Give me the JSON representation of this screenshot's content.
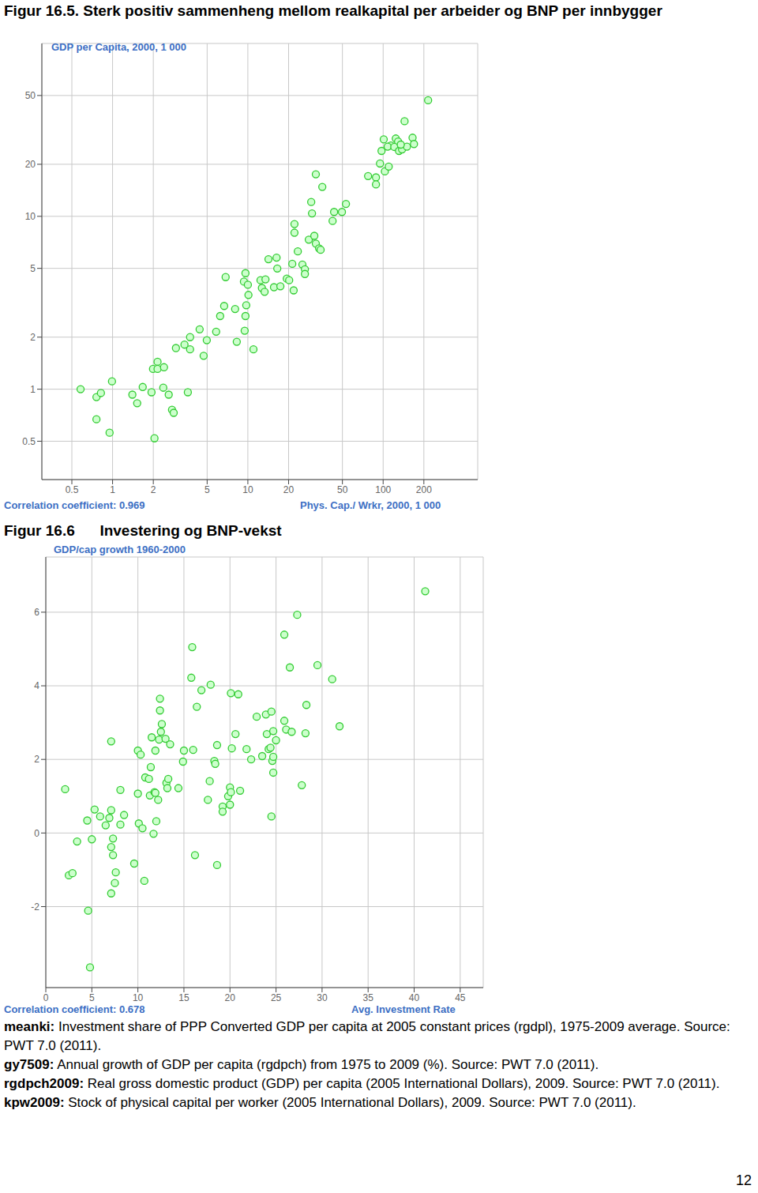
{
  "chart_data": [
    {
      "type": "scatter",
      "title": "Figur 16.5. Sterk positiv sammenheng mellom realkapital per arbeider og BNP per innbygger",
      "x_label": "Phys. Cap./ Wrkr, 2000, 1 000",
      "y_label": "GDP per Capita, 2000, 1 000",
      "annotations": [
        "Correlation coefficient: 0.969"
      ],
      "log": true,
      "grid": true,
      "marker": "circle",
      "color": "#33cc33",
      "xlim": [
        0.3,
        500
      ],
      "xticks": [
        0.5,
        1,
        2,
        5,
        10,
        20,
        50,
        100,
        200
      ],
      "ylim": [
        0.3,
        100
      ],
      "yticks": [
        0.5,
        1,
        2,
        5,
        10,
        20,
        50
      ],
      "x": [
        0.58,
        0.76,
        0.82,
        0.76,
        0.95,
        0.99,
        1.4,
        1.52,
        1.67,
        1.99,
        2.15,
        2.15,
        2.4,
        2.37,
        1.94,
        2.6,
        2.75,
        2.83,
        2.04,
        3.6,
        2.94,
        3.4,
        3.74,
        3.74,
        4.71,
        4.97,
        4.4,
        5.83,
        6.24,
        6.68,
        6.85,
        8.05,
        8.28,
        9.6,
        9.73,
        9.6,
        9.35,
        10,
        10.1,
        9.47,
        11,
        12.4,
        12.7,
        13.3,
        13.5,
        14.2,
        16.3,
        16.5,
        15.6,
        17.4,
        19.4,
        20.2,
        21.8,
        21.3,
        23.4,
        22.1,
        22.1,
        25.3,
        26.4,
        26.4,
        28.2,
        31,
        31.8,
        33.6,
        34.5,
        29.8,
        29.4,
        31.8,
        35.5,
        42.3,
        43.4,
        49.6,
        53.1,
        77.4,
        88.5,
        88.5,
        94.8,
        103,
        110,
        97.3,
        101,
        114,
        108,
        124,
        129,
        121,
        131,
        138,
        150,
        135,
        144,
        165,
        169,
        215
      ],
      "values": [
        1.0,
        0.9,
        0.95,
        0.67,
        0.56,
        1.11,
        0.93,
        0.83,
        1.03,
        1.31,
        1.44,
        1.31,
        1.34,
        1.02,
        0.96,
        0.93,
        0.76,
        0.73,
        0.52,
        0.96,
        1.73,
        1.81,
        2.0,
        1.7,
        1.56,
        1.92,
        2.22,
        2.15,
        2.65,
        3.03,
        4.45,
        2.91,
        1.88,
        2.65,
        3.06,
        4.69,
        4.19,
        4.02,
        3.51,
        2.18,
        1.7,
        4.27,
        3.85,
        3.66,
        4.32,
        5.65,
        5.77,
        4.99,
        3.89,
        3.94,
        4.36,
        4.27,
        3.73,
        5.31,
        6.27,
        8.04,
        9.02,
        5.26,
        4.94,
        4.64,
        7.33,
        7.71,
        6.95,
        6.53,
        6.4,
        10.4,
        12.1,
        17.5,
        14.8,
        9.4,
        10.6,
        10.6,
        11.8,
        17.1,
        16.8,
        15.3,
        20.2,
        18.2,
        19.4,
        23.9,
        27.9,
        25.7,
        25.3,
        28.2,
        27.1,
        25.2,
        23.9,
        24.4,
        25.3,
        26.0,
        35.5,
        28.5,
        26.2,
        46.9
      ]
    },
    {
      "type": "scatter",
      "title": "Figur 16.6      Investering og BNP-vekst",
      "x_label": "Avg. Investment Rate",
      "y_label": "GDP/cap growth 1960-2000",
      "annotations": [
        "Correlation coefficient: 0.678"
      ],
      "grid": true,
      "marker": "circle",
      "color": "#33cc33",
      "xlim": [
        0,
        47.5
      ],
      "xticks": [
        0,
        5,
        10,
        15,
        20,
        25,
        30,
        35,
        40,
        45
      ],
      "ylim": [
        -4.2,
        7.5
      ],
      "yticks": [
        -2,
        0,
        2,
        4,
        6
      ],
      "x": [
        2.1,
        2.5,
        2.9,
        3.4,
        4.5,
        4.6,
        4.8,
        5.0,
        5.3,
        5.9,
        6.5,
        6.9,
        7.1,
        7.1,
        7.1,
        7.3,
        7.3,
        7.6,
        7.5,
        7.1,
        8.1,
        8.1,
        8.5,
        9.6,
        10.0,
        10.0,
        10.3,
        10.1,
        10.5,
        10.7,
        10.8,
        11.2,
        11.4,
        11.3,
        11.7,
        11.8,
        12.0,
        11.9,
        12.2,
        11.5,
        11.9,
        12.3,
        12.4,
        12.4,
        12.6,
        12.5,
        13.0,
        13.1,
        13.3,
        13.5,
        13.2,
        14.4,
        14.9,
        15.0,
        16.0,
        15.9,
        15.8,
        16.4,
        16.9,
        16.2,
        17.9,
        17.8,
        17.6,
        18.3,
        18.4,
        18.6,
        18.6,
        19.2,
        19.2,
        19.8,
        20.0,
        20.1,
        20.9,
        20.2,
        20.6,
        20.0,
        20.1,
        21.1,
        21.8,
        22.3,
        22.9,
        23.9,
        24.0,
        24.2,
        24.5,
        24.4,
        24.6,
        24.7,
        24.7,
        24.7,
        24.5,
        25.0,
        23.5,
        25.9,
        26.5,
        25.9,
        26.1,
        26.7,
        27.3,
        28.3,
        28.2,
        27.8,
        29.5,
        31.1,
        31.9,
        41.2
      ],
      "values": [
        1.19,
        -1.15,
        -1.09,
        -0.23,
        0.34,
        -2.11,
        -3.65,
        -0.17,
        0.64,
        0.45,
        0.21,
        0.41,
        0.62,
        2.49,
        -0.38,
        -0.6,
        -0.15,
        -1.07,
        -1.36,
        -1.64,
        0.23,
        1.17,
        0.49,
        -0.83,
        1.07,
        2.24,
        2.13,
        0.26,
        0.13,
        -1.3,
        1.51,
        1.47,
        1.79,
        1.02,
        -0.02,
        1.11,
        0.32,
        1.09,
        0.9,
        2.6,
        2.24,
        2.54,
        3.33,
        3.65,
        2.96,
        2.75,
        2.56,
        1.36,
        1.47,
        2.41,
        1.22,
        1.22,
        1.94,
        2.24,
        2.26,
        5.05,
        4.22,
        3.43,
        3.88,
        -0.6,
        4.03,
        1.41,
        0.9,
        1.96,
        1.88,
        2.39,
        -0.87,
        0.72,
        0.58,
        1.0,
        0.77,
        3.8,
        3.77,
        2.3,
        2.69,
        1.24,
        1.11,
        1.15,
        2.28,
        2.0,
        3.16,
        3.22,
        2.69,
        2.28,
        3.3,
        2.32,
        1.96,
        2.07,
        1.64,
        2.77,
        0.45,
        2.52,
        2.09,
        5.39,
        4.5,
        3.05,
        2.81,
        2.75,
        5.93,
        3.48,
        2.71,
        1.3,
        4.56,
        4.18,
        2.9,
        6.57
      ]
    }
  ],
  "notes": [
    {
      "term": "meanki:",
      "text": "Investment share of PPP Converted GDP per capita at 2005 constant prices (rgdpl), 1975-2009 average. Source: PWT 7.0 (2011)."
    },
    {
      "term": "gy7509:",
      "text": "Annual growth of GDP per capita (rgdpch) from 1975 to 2009 (%). Source: PWT 7.0 (2011)."
    },
    {
      "term": "rgdpch2009:",
      "text": "Real gross domestic product (GDP) per capita (2005 International Dollars), 2009. Source: PWT 7.0 (2011)."
    },
    {
      "term": "kpw2009:",
      "text": "Stock of physical capital per worker (2005 International Dollars), 2009. Source: PWT 7.0 (2011)."
    }
  ],
  "page_number": "12"
}
